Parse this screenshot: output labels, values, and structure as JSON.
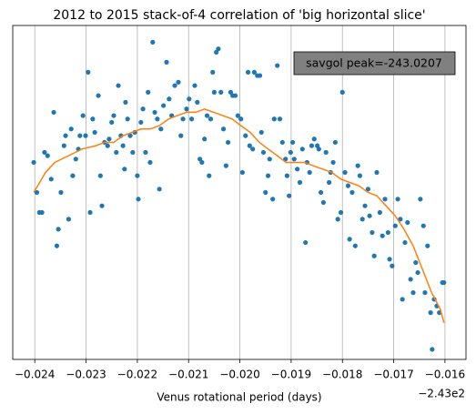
{
  "chart_data": {
    "type": "scatter",
    "title": "2012 to 2015 stack-of-4 correlation of 'big horizontal slice'",
    "x_label": "Venus rotational period (days)",
    "x_offset_label": "−2.43e2",
    "annotation": "savgol peak=-243.0207",
    "color": "#1f77b4",
    "x": [
      -0.02402,
      -0.02396,
      -0.02391,
      -0.02386,
      -0.02381,
      -0.02375,
      -0.02368,
      -0.02363,
      -0.02357,
      -0.02354,
      -0.02349,
      -0.02343,
      -0.0234,
      -0.02334,
      -0.02329,
      -0.02326,
      -0.0232,
      -0.02315,
      -0.02312,
      -0.02306,
      -0.02301,
      -0.02296,
      -0.02292,
      -0.02287,
      -0.02283,
      -0.02276,
      -0.02272,
      -0.02269,
      -0.02264,
      -0.02258,
      -0.02255,
      -0.0225,
      -0.02246,
      -0.02241,
      -0.02237,
      -0.02232,
      -0.02228,
      -0.02225,
      -0.02223,
      -0.02219,
      -0.02214,
      -0.02209,
      -0.02205,
      -0.022,
      -0.02198,
      -0.02193,
      -0.02189,
      -0.02184,
      -0.02179,
      -0.02175,
      -0.0217,
      -0.02166,
      -0.02161,
      -0.02157,
      -0.02154,
      -0.02149,
      -0.02143,
      -0.02138,
      -0.02133,
      -0.02127,
      -0.0212,
      -0.02115,
      -0.02111,
      -0.02104,
      -0.02099,
      -0.02094,
      -0.02088,
      -0.02083,
      -0.02078,
      -0.02074,
      -0.02069,
      -0.02064,
      -0.0206,
      -0.02057,
      -0.02053,
      -0.0205,
      -0.02046,
      -0.02042,
      -0.02037,
      -0.02032,
      -0.02027,
      -0.02023,
      -0.02018,
      -0.02014,
      -0.02009,
      -0.02004,
      -0.01998,
      -0.01995,
      -0.01989,
      -0.01984,
      -0.01981,
      -0.01975,
      -0.01972,
      -0.01966,
      -0.01961,
      -0.01958,
      -0.01954,
      -0.0195,
      -0.01945,
      -0.01942,
      -0.01936,
      -0.01933,
      -0.01927,
      -0.01922,
      -0.01917,
      -0.01911,
      -0.01908,
      -0.01904,
      -0.01901,
      -0.01897,
      -0.01894,
      -0.01888,
      -0.01883,
      -0.01878,
      -0.01872,
      -0.01869,
      -0.01864,
      -0.0186,
      -0.01855,
      -0.01849,
      -0.01846,
      -0.01842,
      -0.01837,
      -0.01832,
      -0.01826,
      -0.01823,
      -0.01818,
      -0.01814,
      -0.01809,
      -0.01803,
      -0.018,
      -0.01795,
      -0.01789,
      -0.01786,
      -0.01781,
      -0.01775,
      -0.0177,
      -0.01766,
      -0.01761,
      -0.01756,
      -0.0175,
      -0.01747,
      -0.01742,
      -0.01738,
      -0.01733,
      -0.01727,
      -0.01722,
      -0.01717,
      -0.01711,
      -0.01708,
      -0.01703,
      -0.01697,
      -0.01692,
      -0.01687,
      -0.01683,
      -0.01678,
      -0.01673,
      -0.01667,
      -0.01662,
      -0.01657,
      -0.01653,
      -0.01648,
      -0.01642,
      -0.01639,
      -0.01634,
      -0.01628,
      -0.01625,
      -0.01621,
      -0.01616,
      -0.01611,
      -0.01605,
      -0.01602
    ],
    "values": [
      59,
      50,
      44,
      44,
      62,
      61,
      54,
      74,
      34,
      39,
      50,
      64,
      67,
      42,
      69,
      55,
      60,
      63,
      67,
      73,
      67,
      86,
      44,
      72,
      68,
      79,
      55,
      46,
      65,
      64,
      66,
      71,
      73,
      62,
      82,
      67,
      64,
      57,
      77,
      72,
      67,
      62,
      68,
      55,
      48,
      71,
      75,
      62,
      80,
      59,
      95,
      74,
      72,
      51,
      69,
      76,
      89,
      78,
      73,
      82,
      83,
      67,
      72,
      75,
      78,
      72,
      82,
      77,
      60,
      59,
      66,
      73,
      55,
      72,
      86,
      80,
      92,
      93,
      80,
      69,
      58,
      65,
      80,
      79,
      79,
      73,
      72,
      56,
      67,
      86,
      64,
      63,
      86,
      85,
      85,
      68,
      62,
      50,
      55,
      60,
      48,
      72,
      88,
      72,
      65,
      60,
      55,
      49,
      62,
      65,
      60,
      57,
      53,
      63,
      35,
      59,
      56,
      64,
      66,
      64,
      63,
      50,
      47,
      62,
      53,
      56,
      59,
      65,
      42,
      44,
      80,
      56,
      52,
      36,
      50,
      34,
      58,
      55,
      42,
      46,
      51,
      43,
      38,
      31,
      56,
      44,
      37,
      48,
      38,
      30,
      28,
      40,
      48,
      42,
      18,
      35,
      41,
      24,
      20,
      29,
      26,
      48,
      40,
      20,
      34,
      14,
      3,
      18,
      16,
      14,
      23,
      23
    ],
    "line": {
      "color": "#ff7f0e",
      "x": [
        -0.02402,
        -0.02379,
        -0.02361,
        -0.02334,
        -0.02308,
        -0.02281,
        -0.02264,
        -0.02246,
        -0.02228,
        -0.0221,
        -0.02193,
        -0.02175,
        -0.02157,
        -0.02139,
        -0.02122,
        -0.02104,
        -0.02086,
        -0.02069,
        -0.02051,
        -0.02033,
        -0.02015,
        -0.01998,
        -0.0198,
        -0.01962,
        -0.01945,
        -0.01927,
        -0.0191,
        -0.01892,
        -0.01874,
        -0.01857,
        -0.01839,
        -0.01821,
        -0.01803,
        -0.01786,
        -0.01768,
        -0.0175,
        -0.01733,
        -0.01715,
        -0.01697,
        -0.0168,
        -0.01662,
        -0.01644,
        -0.01626,
        -0.01609,
        -0.01602
      ],
      "values": [
        50,
        56,
        59,
        61,
        63,
        64,
        65,
        65,
        67,
        68,
        69,
        69,
        70,
        72,
        73,
        74,
        74,
        75,
        74,
        73,
        72,
        70,
        68,
        65,
        63,
        61,
        59,
        59,
        59,
        58,
        57,
        56,
        54,
        53,
        52,
        50,
        49,
        46,
        43,
        39,
        34,
        27,
        20,
        15,
        11
      ]
    },
    "xlim": [
      -0.02443,
      -0.01559
    ],
    "ylim": [
      0,
      100
    ],
    "xticks": [
      {
        "value": -0.024,
        "label": "−0.024"
      },
      {
        "value": -0.023,
        "label": "−0.023"
      },
      {
        "value": -0.022,
        "label": "−0.022"
      },
      {
        "value": -0.021,
        "label": "−0.021"
      },
      {
        "value": -0.02,
        "label": "−0.020"
      },
      {
        "value": -0.019,
        "label": "−0.019"
      },
      {
        "value": -0.018,
        "label": "−0.018"
      },
      {
        "value": -0.017,
        "label": "−0.017"
      },
      {
        "value": -0.016,
        "label": "−0.016"
      }
    ],
    "grid": "x"
  }
}
